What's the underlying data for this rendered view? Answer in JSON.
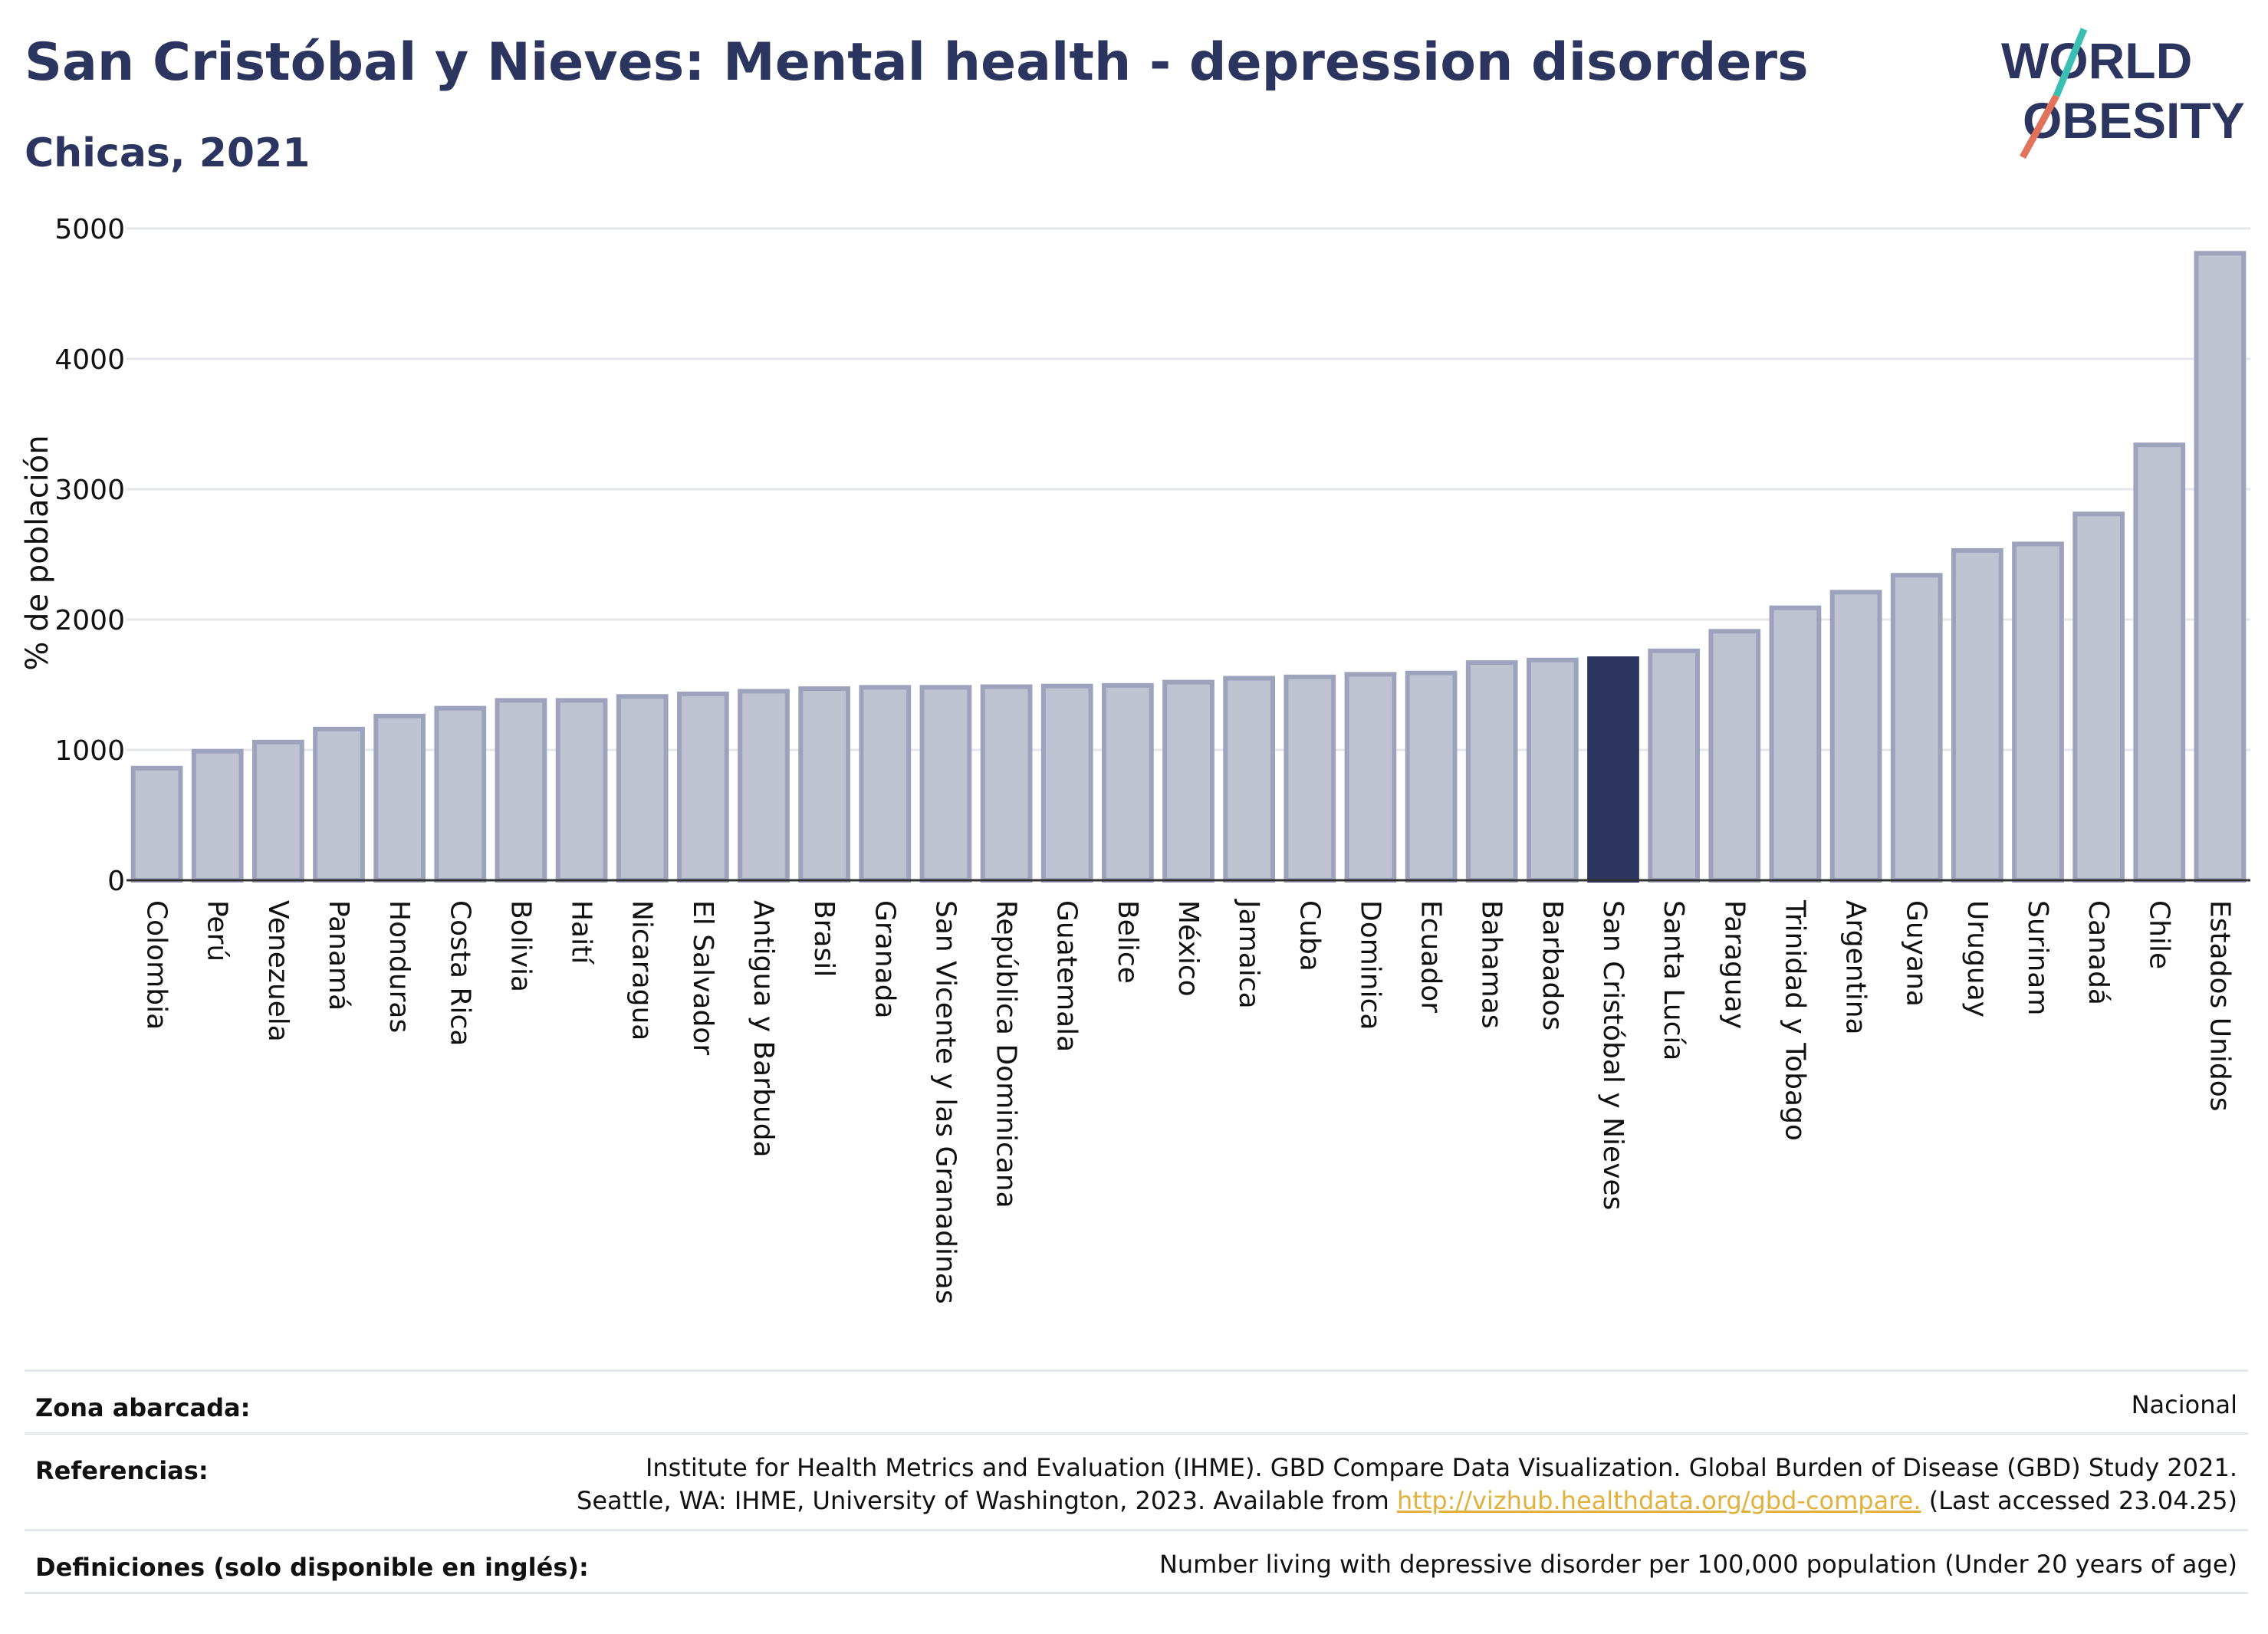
{
  "title": "San Cristóbal y Nieves: Mental health - depression disorders",
  "subtitle": "Chicas, 2021",
  "logo": {
    "line1": "WORLD",
    "line2": "OBESITY"
  },
  "chart_data": {
    "type": "bar",
    "ylabel": "% de población",
    "ylim": [
      0,
      5000
    ],
    "yticks": [
      0,
      1000,
      2000,
      3000,
      4000,
      5000
    ],
    "grid": true,
    "highlight": "San Cristóbal y Nieves",
    "colors": {
      "bar": "#bfc2d0",
      "bar_border": "#9ea3bd",
      "highlight": "#2b355f",
      "grid": "#e5e7eb"
    },
    "categories": [
      "Colombia",
      "Perú",
      "Venezuela",
      "Panamá",
      "Honduras",
      "Costa Rica",
      "Bolivia",
      "Haití",
      "Nicaragua",
      "El Salvador",
      "Antigua y Barbuda",
      "Brasil",
      "Granada",
      "San Vicente y las Granadinas",
      "República Dominicana",
      "Guatemala",
      "Belice",
      "México",
      "Jamaica",
      "Cuba",
      "Dominica",
      "Ecuador",
      "Bahamas",
      "Barbados",
      "San Cristóbal y Nieves",
      "Santa Lucía",
      "Paraguay",
      "Trinidad y Tobago",
      "Argentina",
      "Guyana",
      "Uruguay",
      "Surinam",
      "Canadá",
      "Chile",
      "Estados Unidos"
    ],
    "values": [
      860,
      990,
      1060,
      1160,
      1260,
      1320,
      1380,
      1380,
      1410,
      1430,
      1450,
      1470,
      1480,
      1480,
      1485,
      1490,
      1495,
      1520,
      1550,
      1560,
      1580,
      1590,
      1670,
      1690,
      1700,
      1760,
      1910,
      2090,
      2210,
      2340,
      2530,
      2580,
      2810,
      3340,
      4810
    ]
  },
  "footer": {
    "zona_label": "Zona abarcada:",
    "zona_value": "Nacional",
    "ref_label": "Referencias:",
    "ref_line1": "Institute for Health Metrics and Evaluation (IHME). GBD Compare Data Visualization. Global Burden of Disease (GBD) Study 2021.",
    "ref_line2_pre": "Seattle, WA: IHME, University of Washington, 2023. Available from ",
    "ref_link": "http://vizhub.healthdata.org/gbd-compare.",
    "ref_line2_post": " (Last accessed 23.04.25)",
    "def_label": "Definiciones (solo disponible en inglés):",
    "def_value": "Number living with depressive disorder per 100,000 population (Under 20 years of age)"
  }
}
